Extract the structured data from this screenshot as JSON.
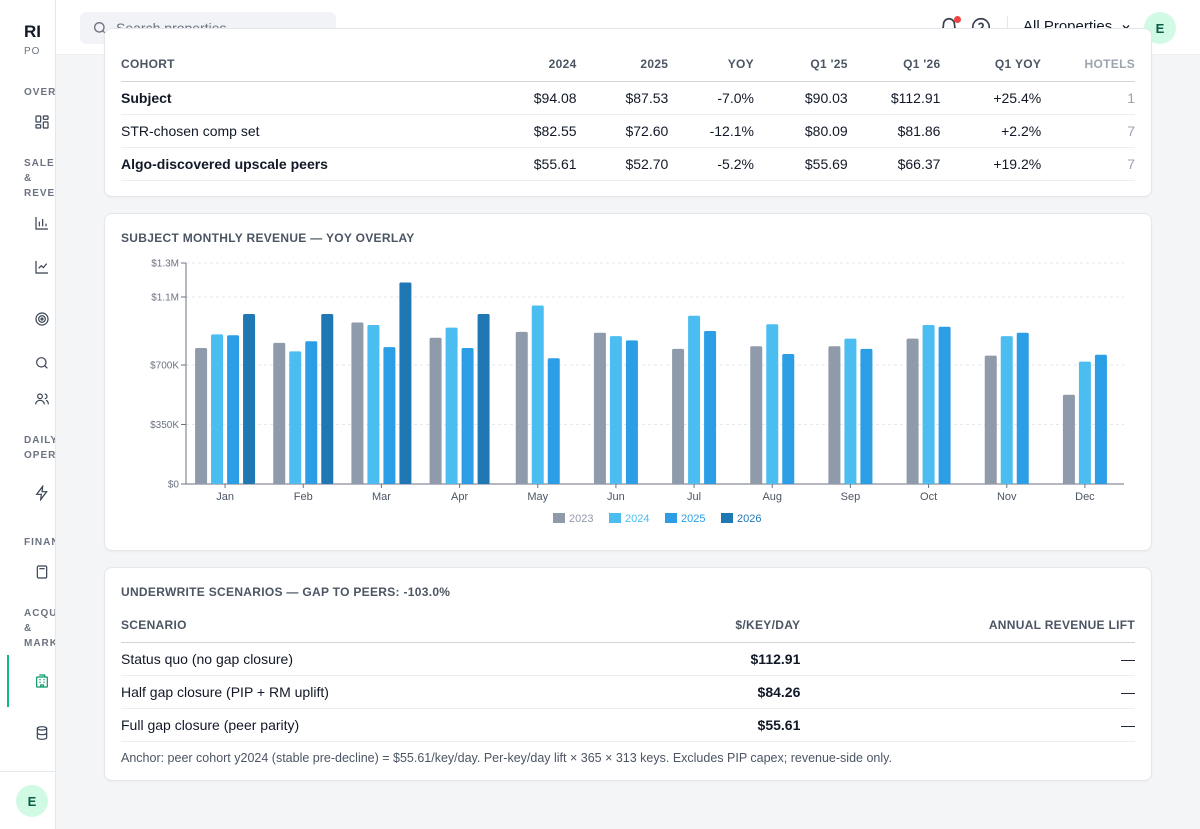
{
  "sidebar": {
    "brand": "RI",
    "brand_sub": "PO",
    "sections": [
      "OVER",
      "SALES\n&\nREVE",
      "DAILY\nOPER",
      "FINAN",
      "ACQU\n&\nMARK"
    ],
    "avatar": "E"
  },
  "topbar": {
    "search_placeholder": "Search properties...",
    "property_selector": "All Properties",
    "avatar": "E"
  },
  "cohort_table": {
    "headers": [
      "COHORT",
      "2024",
      "2025",
      "YOY",
      "Q1 '25",
      "Q1 '26",
      "Q1 YOY",
      "HOTELS"
    ],
    "rows": [
      [
        "Subject",
        "$94.08",
        "$87.53",
        "-7.0%",
        "$90.03",
        "$112.91",
        "+25.4%",
        "1"
      ],
      [
        "STR-chosen comp set",
        "$82.55",
        "$72.60",
        "-12.1%",
        "$80.09",
        "$81.86",
        "+2.2%",
        "7"
      ],
      [
        "Algo-discovered upscale peers",
        "$55.61",
        "$52.70",
        "-5.2%",
        "$55.69",
        "$66.37",
        "+19.2%",
        "7"
      ]
    ]
  },
  "chart_data": {
    "type": "bar",
    "title": "SUBJECT MONTHLY REVENUE — YOY OVERLAY",
    "categories": [
      "Jan",
      "Feb",
      "Mar",
      "Apr",
      "May",
      "Jun",
      "Jul",
      "Aug",
      "Sep",
      "Oct",
      "Nov",
      "Dec"
    ],
    "ylim": [
      0,
      1300000
    ],
    "yticks": [
      0,
      350000,
      700000,
      1100000,
      1300000
    ],
    "ytick_labels": [
      "$0",
      "$350K",
      "$700K",
      "$1.1M",
      "$1.3M"
    ],
    "legend_position": "bottom",
    "series": [
      {
        "name": "2023",
        "color": "#8f9aaa",
        "values": [
          800000,
          830000,
          950000,
          860000,
          895000,
          890000,
          795000,
          810000,
          810000,
          855000,
          755000,
          525000
        ]
      },
      {
        "name": "2024",
        "color": "#4cbdf0",
        "values": [
          880000,
          780000,
          935000,
          920000,
          1050000,
          870000,
          990000,
          940000,
          855000,
          935000,
          870000,
          720000
        ]
      },
      {
        "name": "2025",
        "color": "#2b9ee6",
        "values": [
          875000,
          840000,
          805000,
          800000,
          740000,
          845000,
          900000,
          765000,
          795000,
          925000,
          890000,
          760000
        ]
      },
      {
        "name": "2026",
        "color": "#1f77b4",
        "values": [
          1000000,
          1000000,
          1185000,
          1000000,
          null,
          null,
          null,
          null,
          null,
          null,
          null,
          null
        ]
      }
    ]
  },
  "scenario_card": {
    "title": "UNDERWRITE SCENARIOS — GAP TO PEERS: -103.0%",
    "headers": [
      "SCENARIO",
      "$/KEY/DAY",
      "ANNUAL REVENUE LIFT"
    ],
    "rows": [
      [
        "Status quo (no gap closure)",
        "$112.91",
        "—"
      ],
      [
        "Half gap closure (PIP + RM uplift)",
        "$84.26",
        "—"
      ],
      [
        "Full gap closure (peer parity)",
        "$55.61",
        "—"
      ]
    ],
    "anchor_note": "Anchor: peer cohort y2024 (stable pre-decline) = $55.61/key/day. Per-key/day lift × 365 × 313 keys. Excludes PIP capex; revenue-side only."
  }
}
